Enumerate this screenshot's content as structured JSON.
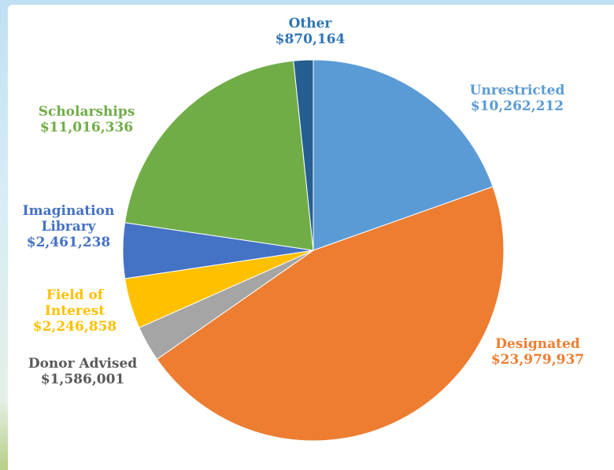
{
  "chart_data": {
    "type": "pie",
    "categories": [
      "Unrestricted",
      "Designated",
      "Donor Advised",
      "Field of Interest",
      "Imagination Library",
      "Scholarships",
      "Other"
    ],
    "values": [
      10262212,
      23979937,
      1586001,
      2246858,
      2461238,
      11016336,
      870164
    ],
    "value_labels": [
      "$10,262,212",
      "$23,979,937",
      "$1,586,001",
      "$2,246,858",
      "$2,461,238",
      "$11,016,336",
      "$870,164"
    ],
    "colors": [
      "#5b9bd5",
      "#ed7d31",
      "#a5a5a5",
      "#ffc000",
      "#4472c4",
      "#70ad47",
      "#255e91"
    ],
    "label_colors": [
      "#5b9bd5",
      "#ed7d31",
      "#595959",
      "#ffc000",
      "#4472c4",
      "#70ad47",
      "#2e75b6"
    ]
  }
}
